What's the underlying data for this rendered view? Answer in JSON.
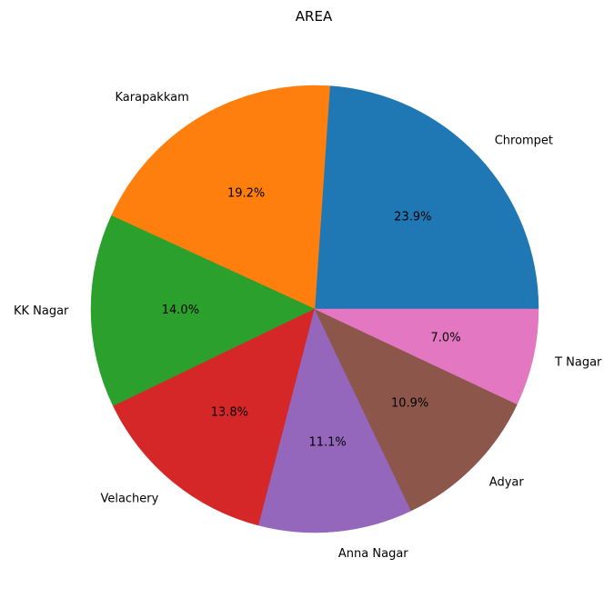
{
  "chart_data": {
    "type": "pie",
    "title": "AREA",
    "categories": [
      "Chrompet",
      "Karapakkam",
      "KK Nagar",
      "Velachery",
      "Anna Nagar",
      "Adyar",
      "T Nagar"
    ],
    "values": [
      23.9,
      19.2,
      14.0,
      13.8,
      11.1,
      10.9,
      7.0
    ],
    "value_labels": [
      "23.9%",
      "19.2%",
      "14.0%",
      "13.8%",
      "11.1%",
      "10.9%",
      "7.0%"
    ],
    "colors": [
      "#1f77b4",
      "#ff7f0e",
      "#2ca02c",
      "#d62728",
      "#9467bd",
      "#8c564b",
      "#e377c2"
    ],
    "start_angle_deg": 0,
    "direction": "counterclockwise",
    "legend": "none"
  }
}
